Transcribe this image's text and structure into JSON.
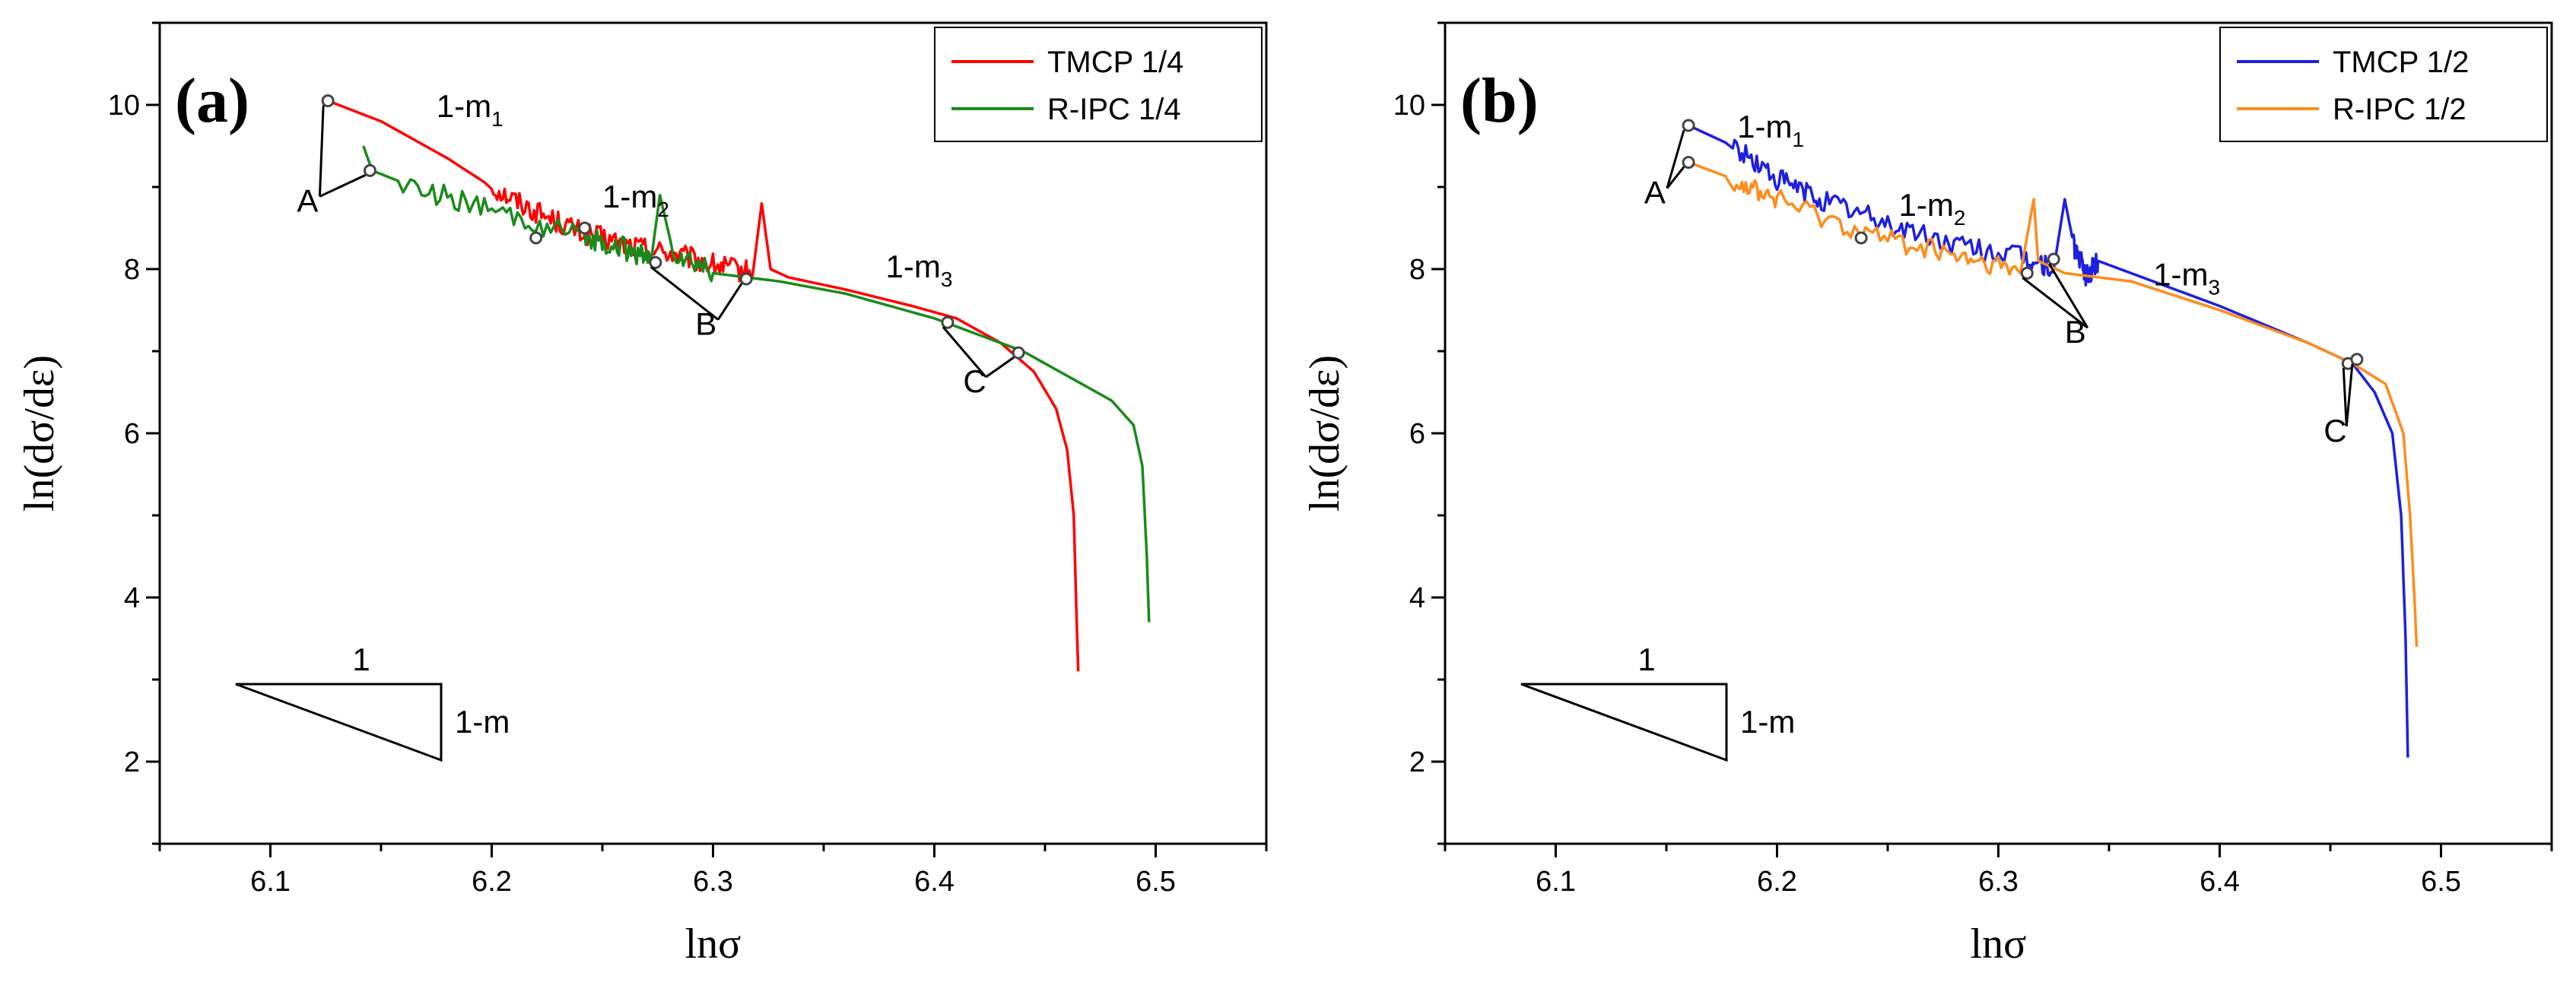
{
  "chart_data": [
    {
      "type": "line",
      "panel": "(a)",
      "xlabel": "lnσ",
      "ylabel": "ln(dσ/dε)",
      "xlim": [
        6.05,
        6.55
      ],
      "ylim": [
        1,
        11
      ],
      "xticks": [
        6.1,
        6.2,
        6.3,
        6.4,
        6.5
      ],
      "yticks": [
        2,
        4,
        6,
        8,
        10
      ],
      "xtick_labels": [
        "6.1",
        "6.2",
        "6.3",
        "6.4",
        "6.5"
      ],
      "ytick_labels": [
        "2",
        "4",
        "6",
        "8",
        "10"
      ],
      "legend": [
        "TMCP 1/4",
        "R-IPC 1/4"
      ],
      "series": [
        {
          "name": "TMCP 1/4",
          "color": "#ff0000",
          "x": [
            6.126,
            6.15,
            6.18,
            6.2,
            6.22,
            6.24,
            6.26,
            6.28,
            6.3,
            6.318,
            6.322,
            6.326,
            6.334,
            6.36,
            6.39,
            6.41,
            6.43,
            6.445,
            6.455,
            6.46,
            6.463,
            6.464,
            6.465
          ],
          "y": [
            10.05,
            9.8,
            9.35,
            9.0,
            8.7,
            8.45,
            8.3,
            8.2,
            8.05,
            7.95,
            8.8,
            8.0,
            7.9,
            7.75,
            7.55,
            7.4,
            7.1,
            6.75,
            6.3,
            5.8,
            5.0,
            4.0,
            3.1
          ],
          "noisy_range": [
            6.2,
            6.32
          ]
        },
        {
          "name": "R-IPC 1/4",
          "color": "#1a8a1a",
          "x": [
            6.142,
            6.146,
            6.16,
            6.2,
            6.24,
            6.26,
            6.272,
            6.276,
            6.282,
            6.3,
            6.33,
            6.36,
            6.4,
            6.44,
            6.46,
            6.48,
            6.49,
            6.494,
            6.496,
            6.497
          ],
          "y": [
            9.5,
            9.2,
            9.05,
            8.7,
            8.4,
            8.25,
            8.1,
            8.9,
            8.2,
            7.95,
            7.85,
            7.7,
            7.4,
            7.0,
            6.7,
            6.4,
            6.1,
            5.6,
            4.5,
            3.7
          ],
          "noisy_range": [
            6.15,
            6.3
          ]
        }
      ],
      "markers": [
        {
          "x": 6.126,
          "y": 10.05
        },
        {
          "x": 6.145,
          "y": 9.2
        },
        {
          "x": 6.242,
          "y": 8.5
        },
        {
          "x": 6.22,
          "y": 8.38
        },
        {
          "x": 6.274,
          "y": 8.08
        },
        {
          "x": 6.315,
          "y": 7.88
        },
        {
          "x": 6.406,
          "y": 7.35
        },
        {
          "x": 6.438,
          "y": 6.98
        }
      ],
      "annotations": [
        {
          "base": "1-m",
          "sub": "1",
          "x": 6.175,
          "y": 9.85
        },
        {
          "base": "1-m",
          "sub": "2",
          "x": 6.25,
          "y": 8.75
        },
        {
          "base": "1-m",
          "sub": "3",
          "x": 6.378,
          "y": 7.9
        },
        {
          "text": "A",
          "x": 6.112,
          "y": 8.7
        },
        {
          "text": "B",
          "x": 6.292,
          "y": 7.2
        },
        {
          "text": "C",
          "x": 6.413,
          "y": 6.5
        }
      ],
      "slope_triangle": {
        "run_label": "1",
        "rise_label": "1-m"
      }
    },
    {
      "type": "line",
      "panel": "(b)",
      "xlabel": "lnσ",
      "ylabel": "ln(dσ/dε)",
      "xlim": [
        6.05,
        6.55
      ],
      "ylim": [
        1,
        11
      ],
      "xticks": [
        6.1,
        6.2,
        6.3,
        6.4,
        6.5
      ],
      "yticks": [
        2,
        4,
        6,
        8,
        10
      ],
      "xtick_labels": [
        "6.1",
        "6.2",
        "6.3",
        "6.4",
        "6.5"
      ],
      "ytick_labels": [
        "2",
        "4",
        "6",
        "8",
        "10"
      ],
      "legend": [
        "TMCP 1/2",
        "R-IPC 1/2"
      ],
      "series": [
        {
          "name": "TMCP 1/2",
          "color": "#1f1fe0",
          "x": [
            6.16,
            6.18,
            6.2,
            6.22,
            6.25,
            6.28,
            6.31,
            6.325,
            6.33,
            6.334,
            6.34,
            6.345,
            6.36,
            6.4,
            6.44,
            6.46,
            6.47,
            6.478,
            6.482,
            6.484,
            6.485
          ],
          "y": [
            9.75,
            9.5,
            9.1,
            8.85,
            8.55,
            8.3,
            8.15,
            8.0,
            8.85,
            8.3,
            7.9,
            8.1,
            7.95,
            7.55,
            7.1,
            6.85,
            6.5,
            6.0,
            5.0,
            3.5,
            2.05
          ],
          "noisy_range": [
            6.18,
            6.35
          ]
        },
        {
          "name": "R-IPC 1/2",
          "color": "#ff8c1a",
          "x": [
            6.16,
            6.18,
            6.2,
            6.24,
            6.28,
            6.31,
            6.316,
            6.318,
            6.322,
            6.33,
            6.36,
            6.4,
            6.44,
            6.46,
            6.475,
            6.483,
            6.486,
            6.488,
            6.489
          ],
          "y": [
            9.3,
            9.1,
            8.85,
            8.45,
            8.15,
            7.95,
            8.85,
            8.1,
            8.05,
            7.95,
            7.85,
            7.5,
            7.1,
            6.85,
            6.6,
            6.0,
            5.0,
            4.0,
            3.4
          ],
          "noisy_range": [
            6.18,
            6.32
          ]
        }
      ],
      "markers": [
        {
          "x": 6.16,
          "y": 9.75
        },
        {
          "x": 6.16,
          "y": 9.3
        },
        {
          "x": 6.238,
          "y": 8.38
        },
        {
          "x": 6.325,
          "y": 8.12
        },
        {
          "x": 6.313,
          "y": 7.95
        },
        {
          "x": 6.458,
          "y": 6.85
        },
        {
          "x": 6.462,
          "y": 6.9
        }
      ],
      "annotations": [
        {
          "base": "1-m",
          "sub": "1",
          "x": 6.182,
          "y": 9.6
        },
        {
          "base": "1-m",
          "sub": "2",
          "x": 6.255,
          "y": 8.65
        },
        {
          "base": "1-m",
          "sub": "3",
          "x": 6.37,
          "y": 7.8
        },
        {
          "text": "A",
          "x": 6.14,
          "y": 8.8
        },
        {
          "text": "B",
          "x": 6.33,
          "y": 7.1
        },
        {
          "text": "C",
          "x": 6.447,
          "y": 5.9
        }
      ],
      "slope_triangle": {
        "run_label": "1",
        "rise_label": "1-m"
      }
    }
  ]
}
